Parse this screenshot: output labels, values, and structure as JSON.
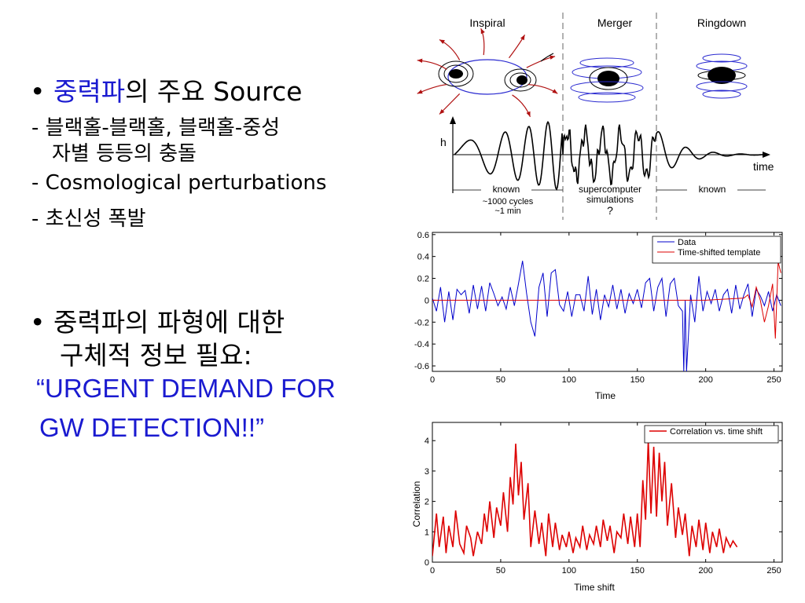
{
  "left": {
    "bullet1": {
      "marker": "•",
      "highlight": "중력파",
      "rest": "의 주요 Source"
    },
    "sub1_line1": "- 블랙홀-블랙홀, 블랙홀-중성",
    "sub1_line2": "자별 등등의 충돌",
    "sub2": "- Cosmological perturbations",
    "sub3": "- 초신성 폭발",
    "bullet2": {
      "marker": "•",
      "line1": "중력파의 파형에 대한",
      "line2": "구체적 정보 필요:"
    },
    "quote_line1": "“URGENT DEMAND FOR",
    "quote_line2": "GW DETECTION!!”"
  },
  "diagram": {
    "phases": [
      "Inspiral",
      "Merger",
      "Ringdown"
    ],
    "h_label": "h",
    "time_label": "time",
    "segment_left": "known",
    "segment_mid_1": "supercomputer",
    "segment_mid_2": "simulations",
    "segment_mid_3": "?",
    "segment_right": "known",
    "cycles_1": "~1000 cycles",
    "cycles_2": "~1 min",
    "arrow_color": "#b01010"
  },
  "chart_data": [
    {
      "type": "line",
      "xlabel": "Time",
      "ylabel": "",
      "xlim": [
        0,
        256
      ],
      "ylim": [
        -0.65,
        0.62
      ],
      "xticks": [
        0,
        50,
        100,
        150,
        200,
        250
      ],
      "yticks": [
        0.6,
        0.4,
        0.2,
        0,
        -0.2,
        -0.4,
        -0.6
      ],
      "legend_position": "top-right",
      "series": [
        {
          "name": "Data",
          "color": "#0000cc",
          "x": [
            0,
            3,
            6,
            9,
            12,
            15,
            18,
            21,
            24,
            27,
            30,
            33,
            36,
            39,
            42,
            45,
            48,
            51,
            54,
            57,
            60,
            63,
            66,
            69,
            72,
            75,
            78,
            81,
            84,
            87,
            90,
            93,
            96,
            99,
            102,
            105,
            108,
            111,
            114,
            117,
            120,
            123,
            126,
            129,
            132,
            135,
            138,
            141,
            144,
            147,
            150,
            153,
            156,
            159,
            162,
            165,
            168,
            171,
            174,
            177,
            180,
            183,
            184,
            185,
            186,
            189,
            192,
            195,
            198,
            201,
            204,
            207,
            210,
            213,
            216,
            219,
            222,
            225,
            228,
            231,
            234,
            237,
            240,
            243,
            246,
            249,
            252,
            255
          ],
          "y": [
            0.02,
            -0.1,
            0.12,
            -0.2,
            0.08,
            -0.18,
            0.1,
            0.05,
            0.09,
            -0.12,
            0.14,
            -0.08,
            0.13,
            -0.1,
            0.16,
            0.06,
            -0.05,
            0.03,
            -0.08,
            0.12,
            -0.05,
            0.15,
            0.36,
            0.06,
            -0.2,
            -0.33,
            0.12,
            0.25,
            -0.15,
            0.25,
            0.28,
            -0.04,
            -0.1,
            0.08,
            -0.15,
            0.05,
            0.05,
            -0.1,
            0.22,
            -0.13,
            0.1,
            -0.18,
            0.05,
            -0.06,
            0.14,
            -0.08,
            0.1,
            -0.12,
            0.06,
            -0.03,
            0.1,
            -0.07,
            0.16,
            0.2,
            -0.1,
            0.12,
            0.2,
            -0.15,
            0.15,
            0.2,
            -0.05,
            -0.1,
            -0.65,
            0.0,
            -0.65,
            0.05,
            -0.2,
            0.22,
            -0.1,
            0.08,
            -0.03,
            0.1,
            -0.1,
            0.05,
            0.1,
            -0.12,
            0.14,
            -0.08,
            0.05,
            0.15,
            -0.15,
            0.1,
            0.04,
            -0.05,
            0.08,
            -0.1,
            0.05,
            -0.05
          ]
        },
        {
          "name": "Time-shifted template",
          "color": "#dd0000",
          "x": [
            0,
            50,
            100,
            150,
            200,
            228,
            231,
            234,
            237,
            240,
            243,
            246,
            249,
            251,
            253,
            255
          ],
          "y": [
            0.0,
            0.0,
            0.0,
            0.0,
            0.0,
            0.02,
            0.05,
            -0.06,
            0.12,
            0.0,
            -0.2,
            -0.05,
            0.15,
            -0.35,
            0.35,
            0.25
          ]
        }
      ]
    },
    {
      "type": "line",
      "xlabel": "Time shift",
      "ylabel": "Correlation",
      "xlim": [
        0,
        256
      ],
      "ylim": [
        0,
        4.6
      ],
      "xticks": [
        0,
        50,
        100,
        150,
        200,
        250
      ],
      "yticks": [
        4,
        3,
        2,
        1,
        0
      ],
      "legend_position": "top-right",
      "series": [
        {
          "name": "Correlation vs. time shift",
          "color": "#dd0000",
          "x": [
            0,
            3,
            5,
            8,
            10,
            12,
            15,
            17,
            20,
            23,
            25,
            28,
            30,
            33,
            36,
            38,
            40,
            42,
            45,
            47,
            50,
            52,
            55,
            57,
            59,
            61,
            63,
            65,
            67,
            70,
            72,
            75,
            78,
            80,
            83,
            85,
            88,
            90,
            93,
            95,
            98,
            100,
            103,
            105,
            108,
            110,
            113,
            115,
            118,
            120,
            123,
            125,
            128,
            130,
            133,
            135,
            138,
            140,
            143,
            145,
            148,
            150,
            152,
            154,
            156,
            158,
            160,
            162,
            164,
            166,
            168,
            170,
            172,
            175,
            178,
            180,
            183,
            185,
            188,
            190,
            193,
            195,
            198,
            200,
            203,
            205,
            208,
            210,
            213,
            215,
            218,
            220,
            223
          ],
          "y": [
            0.2,
            1.6,
            0.5,
            1.5,
            0.3,
            1.2,
            0.5,
            1.7,
            0.6,
            0.3,
            1.2,
            0.8,
            0.2,
            1.0,
            0.6,
            1.6,
            1.0,
            2.0,
            0.8,
            1.8,
            1.2,
            2.3,
            1.0,
            2.8,
            1.9,
            3.9,
            2.2,
            3.3,
            1.4,
            2.6,
            0.5,
            1.7,
            0.6,
            1.3,
            0.2,
            1.6,
            0.5,
            1.3,
            0.4,
            0.9,
            0.5,
            1.0,
            0.3,
            0.8,
            0.5,
            1.2,
            0.4,
            0.9,
            0.6,
            1.2,
            0.5,
            1.4,
            0.7,
            1.2,
            0.3,
            1.0,
            0.8,
            1.6,
            0.6,
            1.5,
            0.5,
            1.6,
            0.5,
            2.7,
            1.4,
            4.0,
            1.6,
            3.8,
            1.5,
            3.6,
            2.0,
            3.3,
            1.2,
            2.6,
            0.8,
            1.8,
            0.9,
            1.6,
            0.2,
            1.2,
            0.5,
            1.4,
            0.4,
            1.3,
            0.3,
            1.0,
            0.5,
            1.1,
            0.3,
            0.8,
            0.5,
            0.7,
            0.5
          ]
        }
      ]
    }
  ]
}
